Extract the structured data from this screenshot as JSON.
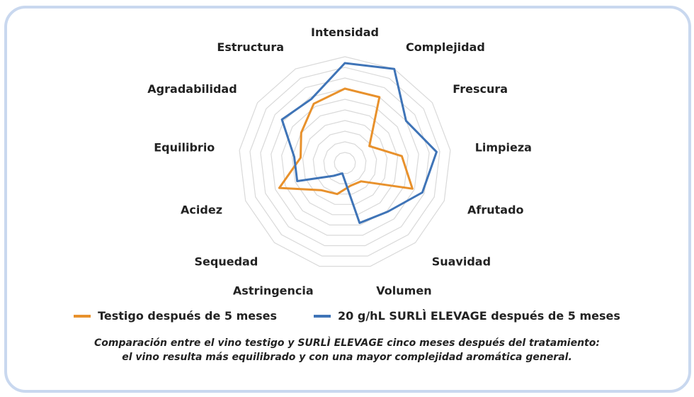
{
  "chart_data": {
    "type": "radar",
    "axes": [
      "Intensidad",
      "Complejidad",
      "Frescura",
      "Limpieza",
      "Afrutado",
      "Suavidad",
      "Volumen",
      "Astringencia",
      "Sequedad",
      "Acidez",
      "Equilibrio",
      "Agradabilidad",
      "Estructura"
    ],
    "rlim": [
      0,
      10
    ],
    "rings": 10,
    "grid": true,
    "series": [
      {
        "name": "Testigo después de 5 meses",
        "color": "#e8912c",
        "values": [
          7.0,
          7.0,
          2.8,
          5.4,
          6.8,
          2.3,
          2.2,
          3.0,
          3.4,
          6.6,
          4.2,
          5.0,
          6.3
        ]
      },
      {
        "name": "20 g/hL SURLÌ ELEVAGE después de 5 meses",
        "color": "#3f74b7",
        "values": [
          9.4,
          10.0,
          7.0,
          8.7,
          7.8,
          6.1,
          5.8,
          1.0,
          1.6,
          4.8,
          4.8,
          7.2,
          6.8
        ]
      }
    ],
    "legend_position": "bottom"
  },
  "caption": {
    "line1": "Comparación entre el vino testigo y SURLÌ ELEVAGE cinco meses después del tratamiento:",
    "line2": "el vino resulta más equilibrado y con una mayor complejidad aromática general."
  }
}
